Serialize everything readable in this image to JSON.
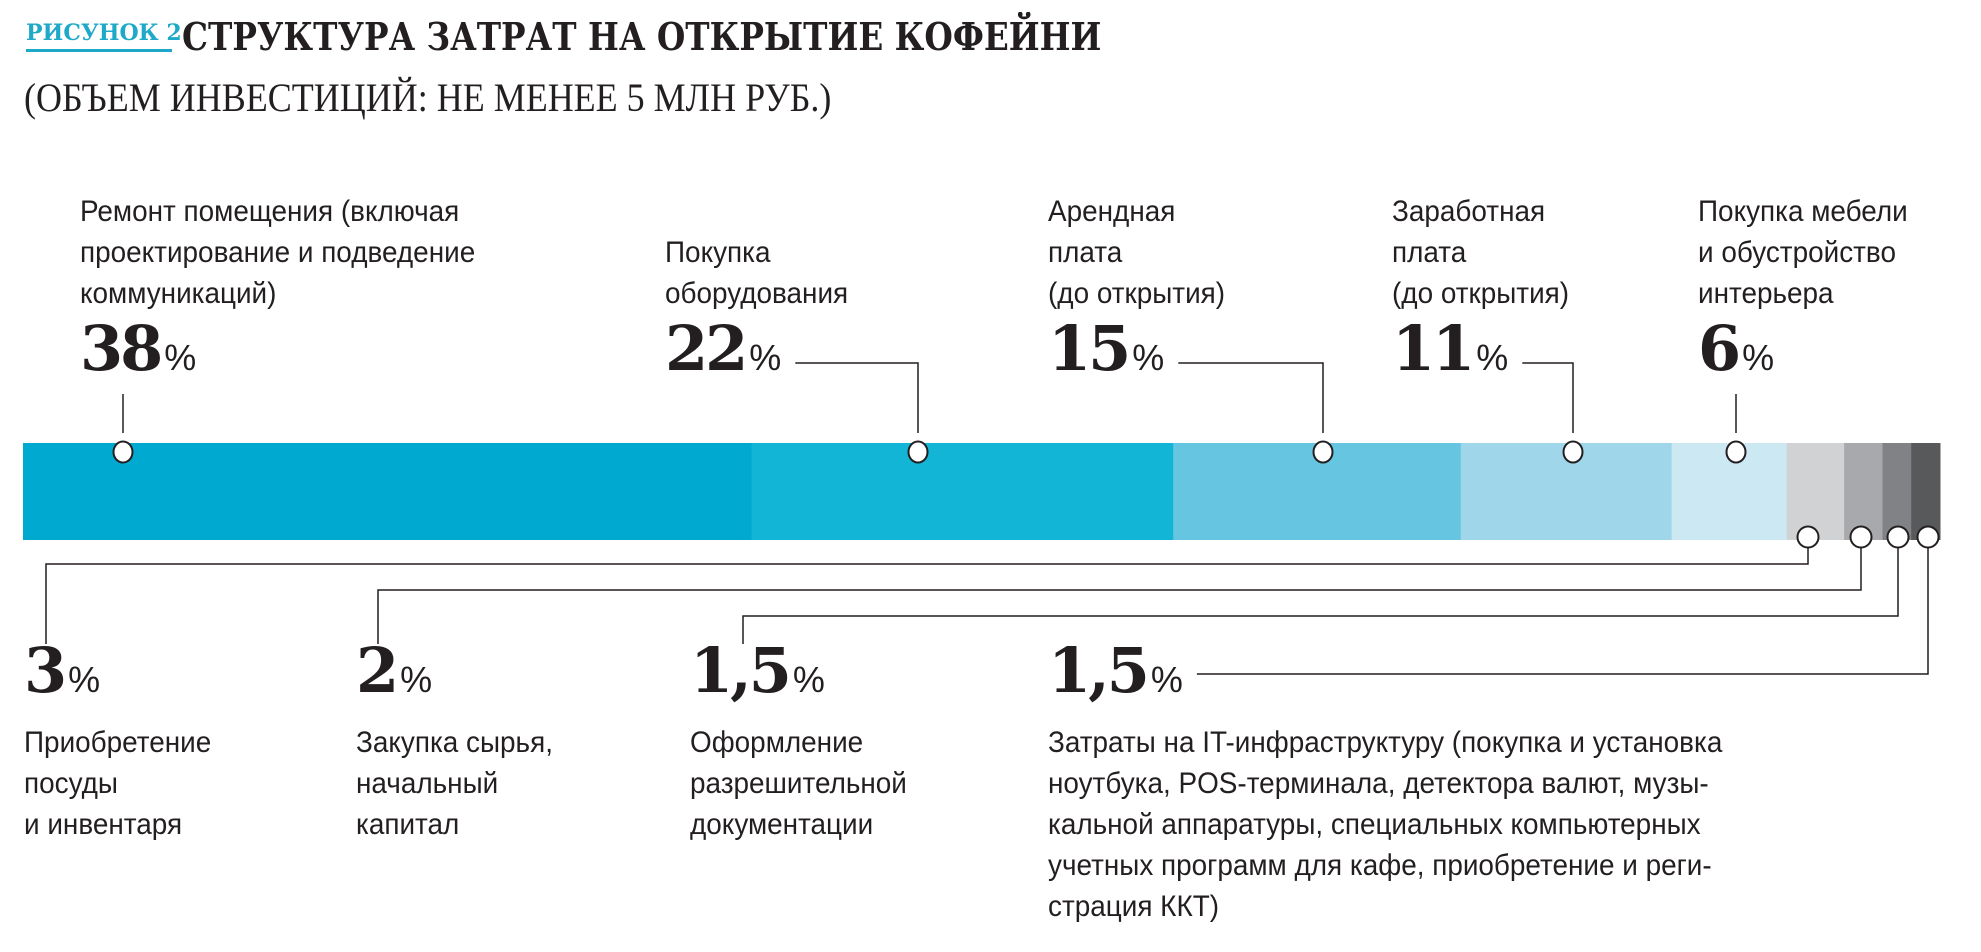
{
  "header": {
    "figure_label": "РИСУНОК 2",
    "title": "СТРУКТУРА ЗАТРАТ НА ОТКРЫТИЕ КОФЕЙНИ",
    "subtitle": "(ОБЪЕМ ИНВЕСТИЦИЙ: НЕ МЕНЕЕ 5 МЛН РУБ.)"
  },
  "chart_data": {
    "type": "bar",
    "subtype": "stacked-horizontal-100",
    "title": "СТРУКТУРА ЗАТРАТ НА ОТКРЫТИЕ КОФЕЙНИ",
    "subtitle": "(ОБЪЕМ ИНВЕСТИЦИЙ: НЕ МЕНЕЕ 5 МЛН РУБ.)",
    "unit": "%",
    "total": 100,
    "segments": [
      {
        "id": "renovation",
        "value": 38,
        "value_label": "38",
        "label_lines": [
          "Ремонт помещения (включая",
          "проектирование и подведение",
          "коммуникаций)"
        ],
        "color": "#00a9cf",
        "label_side": "top"
      },
      {
        "id": "equipment",
        "value": 22,
        "value_label": "22",
        "label_lines": [
          "Покупка",
          "оборудования"
        ],
        "color": "#12b5d6",
        "label_side": "top"
      },
      {
        "id": "rent",
        "value": 15,
        "value_label": "15",
        "label_lines": [
          "Арендная",
          "плата",
          "(до открытия)"
        ],
        "color": "#66c5e0",
        "label_side": "top"
      },
      {
        "id": "salary",
        "value": 11,
        "value_label": "11",
        "label_lines": [
          "Заработная",
          "плата",
          "(до открытия)"
        ],
        "color": "#9fd6ea",
        "label_side": "top"
      },
      {
        "id": "furniture",
        "value": 6,
        "value_label": "6",
        "label_lines": [
          "Покупка мебели",
          "и обустройство",
          "интерьера"
        ],
        "color": "#cce8f3",
        "label_side": "top"
      },
      {
        "id": "dishes",
        "value": 3,
        "value_label": "3",
        "label_lines": [
          "Приобретение",
          "посуды",
          "и инвентаря"
        ],
        "color": "#d1d2d4",
        "label_side": "bottom"
      },
      {
        "id": "raw-materials",
        "value": 2,
        "value_label": "2",
        "label_lines": [
          "Закупка сырья,",
          "начальный",
          "капитал"
        ],
        "color": "#a7a9ac",
        "label_side": "bottom"
      },
      {
        "id": "permits",
        "value": 1.5,
        "value_label": "1,5",
        "label_lines": [
          "Оформление",
          "разрешительной",
          "документации"
        ],
        "color": "#808285",
        "label_side": "bottom"
      },
      {
        "id": "it",
        "value": 1.5,
        "value_label": "1,5",
        "label_lines": [
          "Затраты на IT-инфраструктуру (покупка и установка",
          "ноутбука, POS-терминала, детектора валют, музы-",
          "кальной аппаратуры, специальных компьютерных",
          "учетных программ для кафе, приобретение и реги-",
          "страция ККТ)"
        ],
        "color": "#58595b",
        "label_side": "bottom"
      }
    ]
  }
}
